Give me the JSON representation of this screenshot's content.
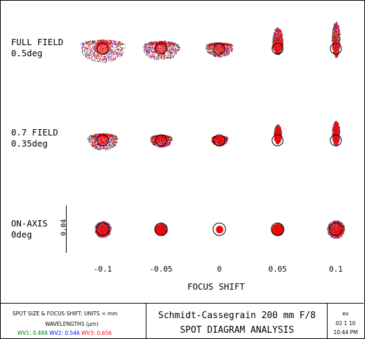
{
  "rows": [
    {
      "name": "FULL FIELD",
      "angle": "0.5deg"
    },
    {
      "name": "0.7 FIELD",
      "angle": "0.35deg"
    },
    {
      "name": "ON-AXIS",
      "angle": "0deg"
    }
  ],
  "focus_shifts": [
    "-0.1",
    "-0.05",
    "0",
    "0.05",
    "0.1"
  ],
  "focus_title": "FOCUS SHIFT",
  "scale_label": "0.04",
  "footer": {
    "units_line": "SPOT SIZE & FOCUS SHIFT: UNITS = mm",
    "wavelengths_title": "WAVELENGTHS (μm)",
    "wavelengths": [
      {
        "label": "WV1:",
        "value": "0.488",
        "color": "#008000"
      },
      {
        "label": "WV2:",
        "value": "0.546",
        "color": "#0000ff"
      },
      {
        "label": "WV3:",
        "value": "0.656",
        "color": "#ff0000"
      }
    ],
    "system_title": "Schmidt-Cassegrain 200 mm F/8",
    "analysis_title": "SPOT DIAGRAM ANALYSIS",
    "user": "ev",
    "date": "02 1 10",
    "time": "10:44 PM"
  }
}
